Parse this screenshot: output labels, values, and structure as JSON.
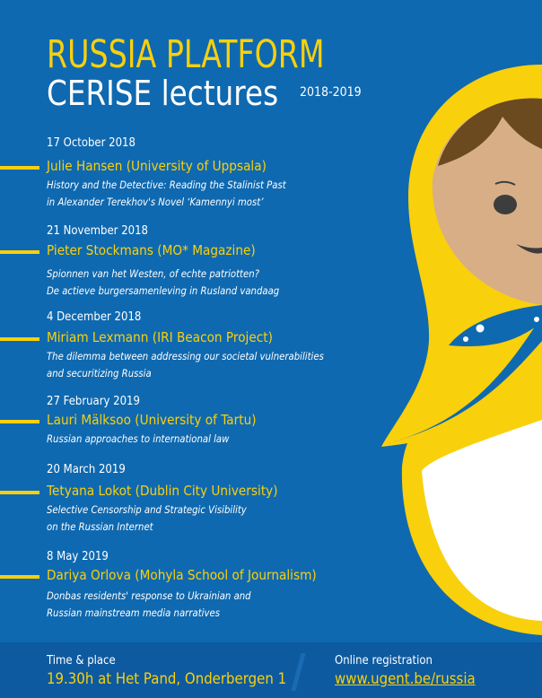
{
  "header": {
    "title": "RUSSIA PLATFORM",
    "subtitle": "CERISE lectures",
    "years": "2018-2019"
  },
  "colors": {
    "background": "#0f69b0",
    "accent": "#f9d00c",
    "footer": "#0d5aa0"
  },
  "events": [
    {
      "date": "17 October 2018",
      "speaker": "Julie Hansen (University of Uppsala)",
      "talk": [
        "History and the Detective: Reading the Stalinist Past",
        "in Alexander Terekhov's Novel ‘Kamennyi most’"
      ]
    },
    {
      "date": "21 November 2018",
      "speaker": "Pieter Stockmans (MO* Magazine)",
      "talk": [
        "Spionnen van het Westen, of echte patriotten?",
        "De actieve burgersamenleving in Rusland vandaag"
      ]
    },
    {
      "date": "4 December 2018",
      "speaker": "Miriam Lexmann (IRI Beacon Project)",
      "talk": [
        "The dilemma between addressing our societal vulnerabilities",
        "and securitizing Russia"
      ]
    },
    {
      "date": "27 February 2019",
      "speaker": "Lauri Mälksoo (University of Tartu)",
      "talk": [
        "Russian approaches to international law"
      ]
    },
    {
      "date": "20 March 2019",
      "speaker": "Tetyana Lokot (Dublin City University)",
      "talk": [
        "Selective Censorship and Strategic Visibility",
        "on the Russian Internet"
      ]
    },
    {
      "date": "8 May 2019",
      "speaker": "Dariya Orlova (Mohyla School of Journalism)",
      "talk": [
        "Donbas residents' response to Ukrainian and",
        "Russian mainstream media narratives"
      ]
    }
  ],
  "footer": {
    "time_label": "Time & place",
    "time_value": "19.30h at Het Pand, Onderbergen 1",
    "reg_label": "Online registration",
    "reg_value": "www.ugent.be/russia"
  }
}
